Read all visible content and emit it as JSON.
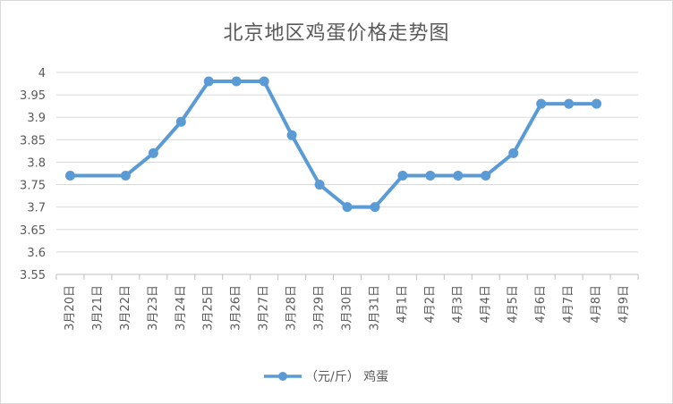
{
  "chart_data": {
    "type": "line",
    "title": "北京地区鸡蛋价格走势图",
    "xlabel": "",
    "ylabel": "",
    "categories": [
      "3月20日",
      "3月21日",
      "3月22日",
      "3月23日",
      "3月24日",
      "3月25日",
      "3月26日",
      "3月27日",
      "3月28日",
      "3月29日",
      "3月30日",
      "3月31日",
      "4月1日",
      "4月2日",
      "4月3日",
      "4月4日",
      "4月5日",
      "4月6日",
      "4月7日",
      "4月8日",
      "4月9日"
    ],
    "y_ticks": [
      "3.55",
      "3.6",
      "3.65",
      "3.7",
      "3.75",
      "3.8",
      "3.85",
      "3.9",
      "3.95",
      "4"
    ],
    "ylim": [
      3.55,
      4.0
    ],
    "grid": true,
    "legend_position": "bottom",
    "series": [
      {
        "name": "（元/斤） 鸡蛋",
        "color": "#5b9bd5",
        "values": [
          3.77,
          null,
          3.77,
          3.82,
          3.89,
          3.98,
          3.98,
          3.98,
          3.86,
          3.75,
          3.7,
          3.7,
          3.77,
          3.77,
          3.77,
          3.77,
          3.82,
          3.93,
          3.93,
          3.93,
          null
        ]
      }
    ]
  }
}
